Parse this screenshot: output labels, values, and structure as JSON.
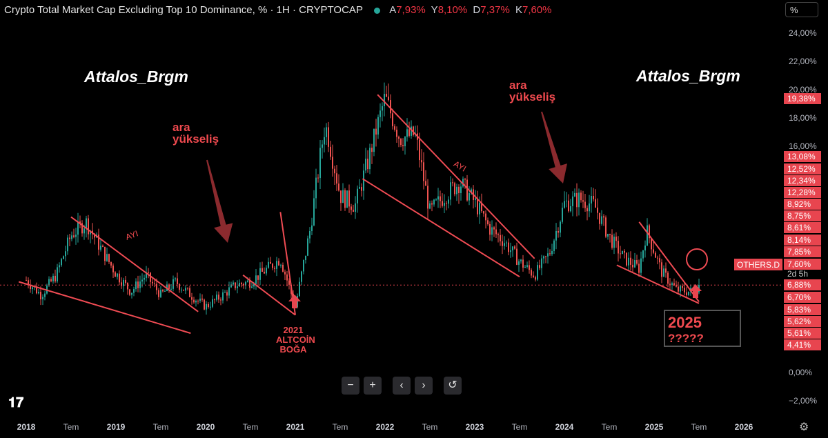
{
  "header": {
    "title": "Crypto Total Market Cap Excluding Top 10 Dominance, % · 1H · CRYPTOCAP",
    "ohlc": [
      {
        "key": "A",
        "value": "7,93%"
      },
      {
        "key": "Y",
        "value": "8,10%"
      },
      {
        "key": "D",
        "value": "7,37%"
      },
      {
        "key": "K",
        "value": "7,60%"
      }
    ],
    "scale_button": "%"
  },
  "watermarks": [
    "Attalos_Brgm",
    "Attalos_Brgm"
  ],
  "annotations": {
    "ara1": [
      "ara",
      "yükseliş"
    ],
    "ara2": [
      "ara",
      "yükseliş"
    ],
    "ayi1": "AYI",
    "ayi2": "AYI",
    "altcoin": [
      "2021",
      "ALTCOİN",
      "BOĞA"
    ],
    "box_year": "2025",
    "box_q": "?????"
  },
  "colors": {
    "up": "#26a69a",
    "down": "#ef5350",
    "annotation": "#f04a4f",
    "label_bg": "#e8454f",
    "arrow": "#8b2a2e"
  },
  "controls": [
    "−",
    "+",
    "‹",
    "›",
    "↺"
  ],
  "chart_data": {
    "type": "candlestick",
    "title": "Crypto Total Market Cap Excluding Top 10 Dominance, %",
    "symbol": "OTHERS.D",
    "ylim": [
      -3.0,
      25.5
    ],
    "y_ticks": [
      "24,00%",
      "22,00%",
      "20,00%",
      "18,00%",
      "16,00%",
      "0,00%",
      "−2,00%"
    ],
    "x_ticks": [
      "2018",
      "Tem",
      "2019",
      "Tem",
      "2020",
      "Tem",
      "2021",
      "Tem",
      "2022",
      "Tem",
      "2023",
      "Tem",
      "2024",
      "Tem",
      "2025",
      "Tem",
      "2026"
    ],
    "price_labels": [
      {
        "text": "19,38%"
      },
      {
        "text": "13,08%"
      },
      {
        "text": "12,52%"
      },
      {
        "text": "12,34%"
      },
      {
        "text": "12,28%"
      },
      {
        "text": "8,92%"
      },
      {
        "text": "8,75%"
      },
      {
        "text": "8,61%"
      },
      {
        "text": "8,14%"
      },
      {
        "text": "7,85%"
      },
      {
        "text": "7,60%"
      },
      {
        "text": "2d 5h"
      },
      {
        "text": "6,88%"
      },
      {
        "text": "6,70%"
      },
      {
        "text": "5,83%"
      },
      {
        "text": "5,62%"
      },
      {
        "text": "5,61%"
      },
      {
        "text": "4,41%"
      }
    ],
    "symbol_label": "OTHERS.D",
    "current_value": 7.6,
    "series_close": [
      {
        "x": "2018-01",
        "y": 7.9
      },
      {
        "x": "2018-03",
        "y": 7.0
      },
      {
        "x": "2018-05",
        "y": 8.2
      },
      {
        "x": "2018-07",
        "y": 10.6
      },
      {
        "x": "2018-09",
        "y": 11.4
      },
      {
        "x": "2018-11",
        "y": 9.8
      },
      {
        "x": "2019-01",
        "y": 8.3
      },
      {
        "x": "2019-03",
        "y": 7.2
      },
      {
        "x": "2019-05",
        "y": 8.2
      },
      {
        "x": "2019-07",
        "y": 7.0
      },
      {
        "x": "2019-09",
        "y": 7.8
      },
      {
        "x": "2019-11",
        "y": 7.0
      },
      {
        "x": "2020-01",
        "y": 6.3
      },
      {
        "x": "2020-03",
        "y": 6.9
      },
      {
        "x": "2020-05",
        "y": 7.6
      },
      {
        "x": "2020-07",
        "y": 7.8
      },
      {
        "x": "2020-09",
        "y": 8.5
      },
      {
        "x": "2020-11",
        "y": 9.2
      },
      {
        "x": "2021-01",
        "y": 6.3
      },
      {
        "x": "2021-03",
        "y": 11.0
      },
      {
        "x": "2021-05",
        "y": 17.5
      },
      {
        "x": "2021-07",
        "y": 13.0
      },
      {
        "x": "2021-09",
        "y": 12.4
      },
      {
        "x": "2021-11",
        "y": 15.5
      },
      {
        "x": "2022-01",
        "y": 19.4
      },
      {
        "x": "2022-03",
        "y": 16.5
      },
      {
        "x": "2022-05",
        "y": 16.8
      },
      {
        "x": "2022-07",
        "y": 12.0
      },
      {
        "x": "2022-09",
        "y": 13.0
      },
      {
        "x": "2022-11",
        "y": 13.8
      },
      {
        "x": "2023-01",
        "y": 12.6
      },
      {
        "x": "2023-03",
        "y": 11.0
      },
      {
        "x": "2023-05",
        "y": 10.2
      },
      {
        "x": "2023-07",
        "y": 9.0
      },
      {
        "x": "2023-09",
        "y": 8.2
      },
      {
        "x": "2023-11",
        "y": 9.5
      },
      {
        "x": "2024-01",
        "y": 12.5
      },
      {
        "x": "2024-03",
        "y": 12.8
      },
      {
        "x": "2024-05",
        "y": 12.4
      },
      {
        "x": "2024-07",
        "y": 10.5
      },
      {
        "x": "2024-09",
        "y": 9.2
      },
      {
        "x": "2024-11",
        "y": 8.6
      },
      {
        "x": "2024-12",
        "y": 10.9
      },
      {
        "x": "2025-02",
        "y": 8.4
      },
      {
        "x": "2025-04",
        "y": 7.3
      },
      {
        "x": "2025-06",
        "y": 7.2
      },
      {
        "x": "2025-07",
        "y": 7.6
      }
    ],
    "trendlines": [
      {
        "from": {
          "x": "2017-12",
          "y": 7.8
        },
        "to": {
          "x": "2019-11",
          "y": 4.7
        }
      },
      {
        "from": {
          "x": "2018-07",
          "y": 11.7
        },
        "to": {
          "x": "2019-12",
          "y": 6.0
        }
      },
      {
        "from": {
          "x": "2020-06",
          "y": 8.2
        },
        "to": {
          "x": "2021-01",
          "y": 5.8
        }
      },
      {
        "from": {
          "x": "2020-11",
          "y": 12.0
        },
        "to": {
          "x": "2021-01",
          "y": 5.8
        }
      },
      {
        "from": {
          "x": "2021-10",
          "y": 14.0
        },
        "to": {
          "x": "2023-07",
          "y": 8.1
        }
      },
      {
        "from": {
          "x": "2021-12",
          "y": 19.6
        },
        "to": {
          "x": "2023-09",
          "y": 9.2
        }
      },
      {
        "from": {
          "x": "2024-08",
          "y": 8.8
        },
        "to": {
          "x": "2025-07",
          "y": 6.5
        }
      },
      {
        "from": {
          "x": "2024-11",
          "y": 11.4
        },
        "to": {
          "x": "2025-07",
          "y": 6.6
        }
      }
    ]
  }
}
